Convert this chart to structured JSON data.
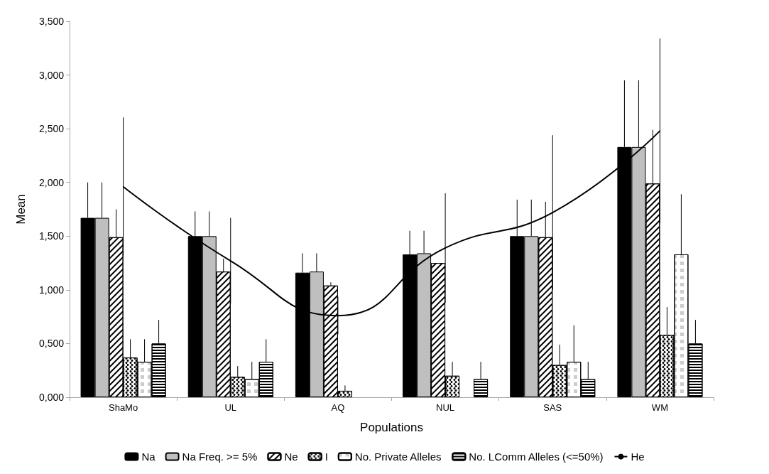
{
  "chart_data": {
    "type": "bar",
    "xlabel": "Populations",
    "ylabel": "Mean",
    "categories": [
      "ShaMo",
      "UL",
      "AQ",
      "NUL",
      "SAS",
      "WM"
    ],
    "ylim": [
      0,
      3.5
    ],
    "yticks": [
      {
        "value": 0,
        "label": "0,000"
      },
      {
        "value": 0.5,
        "label": "0,500"
      },
      {
        "value": 1,
        "label": "1,000"
      },
      {
        "value": 1.5,
        "label": "1,500"
      },
      {
        "value": 2,
        "label": "2,000"
      },
      {
        "value": 2.5,
        "label": "2,500"
      },
      {
        "value": 3,
        "label": "3,000"
      },
      {
        "value": 3.5,
        "label": "3,500"
      }
    ],
    "grid": false,
    "legend": "bottom",
    "series": [
      {
        "name": "Na",
        "color": "#000000",
        "values": [
          1.67,
          1.5,
          1.16,
          1.33,
          1.5,
          2.33
        ],
        "errors": [
          [
            1.67,
            2.0
          ],
          [
            1.5,
            1.73
          ],
          [
            1.16,
            1.34
          ],
          [
            1.33,
            1.55
          ],
          [
            1.5,
            1.84
          ],
          [
            2.33,
            2.95
          ]
        ]
      },
      {
        "name": "Na Freq. >= 5%",
        "color": "#bfbfbf",
        "values": [
          1.67,
          1.5,
          1.17,
          1.34,
          1.5,
          2.33
        ],
        "errors": [
          [
            1.67,
            2.0
          ],
          [
            1.5,
            1.73
          ],
          [
            1.17,
            1.34
          ],
          [
            1.34,
            1.55
          ],
          [
            1.5,
            1.84
          ],
          [
            2.33,
            2.95
          ]
        ]
      },
      {
        "name": "Ne",
        "color": "#ffffff",
        "values": [
          1.49,
          1.17,
          1.04,
          1.25,
          1.49,
          1.99
        ],
        "errors": [
          [
            1.49,
            1.75
          ],
          [
            1.17,
            1.29
          ],
          [
            1.04,
            1.07
          ],
          null,
          [
            1.49,
            1.82
          ],
          [
            1.99,
            2.49
          ]
        ]
      },
      {
        "name": "I",
        "color": "#ffffff",
        "values": [
          0.37,
          0.19,
          0.06,
          0.2,
          0.3,
          0.58
        ],
        "errors": [
          [
            0.37,
            0.54
          ],
          [
            0.19,
            0.29
          ],
          [
            0.06,
            0.11
          ],
          [
            0.2,
            0.33
          ],
          [
            0.3,
            0.49
          ],
          [
            0.58,
            0.84
          ]
        ]
      },
      {
        "name": "No. Private Alleles",
        "color": "#ffffff",
        "values": [
          0.33,
          0.17,
          null,
          null,
          0.33,
          1.33
        ],
        "errors": [
          [
            0.33,
            0.54
          ],
          [
            0.17,
            0.33
          ],
          null,
          null,
          [
            0.33,
            0.67
          ],
          [
            1.33,
            1.89
          ]
        ]
      },
      {
        "name": "No. LComm Alleles (<=50%)",
        "color": "#ffffff",
        "values": [
          0.5,
          0.33,
          null,
          0.17,
          0.17,
          0.5
        ],
        "errors": [
          [
            0.5,
            0.72
          ],
          [
            0.33,
            0.54
          ],
          null,
          [
            0.17,
            0.33
          ],
          [
            0.17,
            0.33
          ],
          [
            0.5,
            0.72
          ]
        ]
      },
      {
        "name": "He",
        "type": "line",
        "color": "#000000",
        "values": [
          1.96,
          1.27,
          0.76,
          1.39,
          1.72,
          2.48
        ],
        "errors": [
          0.645,
          0.4,
          0.175,
          0.51,
          0.72,
          0.86
        ]
      }
    ]
  }
}
